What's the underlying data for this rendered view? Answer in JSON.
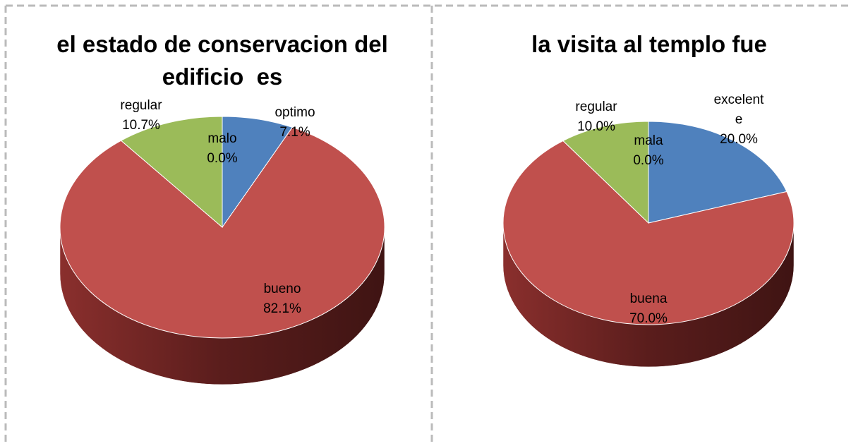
{
  "chart_data": [
    {
      "type": "pie",
      "title": "el estado de conservacion del edificio  es",
      "categories": [
        "optimo",
        "bueno",
        "regular",
        "malo"
      ],
      "values": [
        7.1,
        82.1,
        10.7,
        0.0
      ],
      "value_labels": [
        "7.1%",
        "82.1%",
        "10.7%",
        "0.0%"
      ],
      "colors": [
        "#4f81bd",
        "#c0504d",
        "#9bbb59",
        "#8064a2"
      ]
    },
    {
      "type": "pie",
      "title": "la visita al templo fue",
      "categories": [
        "excelente",
        "buena",
        "regular",
        "mala"
      ],
      "values": [
        20.0,
        70.0,
        10.0,
        0.0
      ],
      "value_labels": [
        "20.0%",
        "70.0%",
        "10.0%",
        "0.0%"
      ],
      "colors": [
        "#4f81bd",
        "#c0504d",
        "#9bbb59",
        "#8064a2"
      ]
    }
  ]
}
